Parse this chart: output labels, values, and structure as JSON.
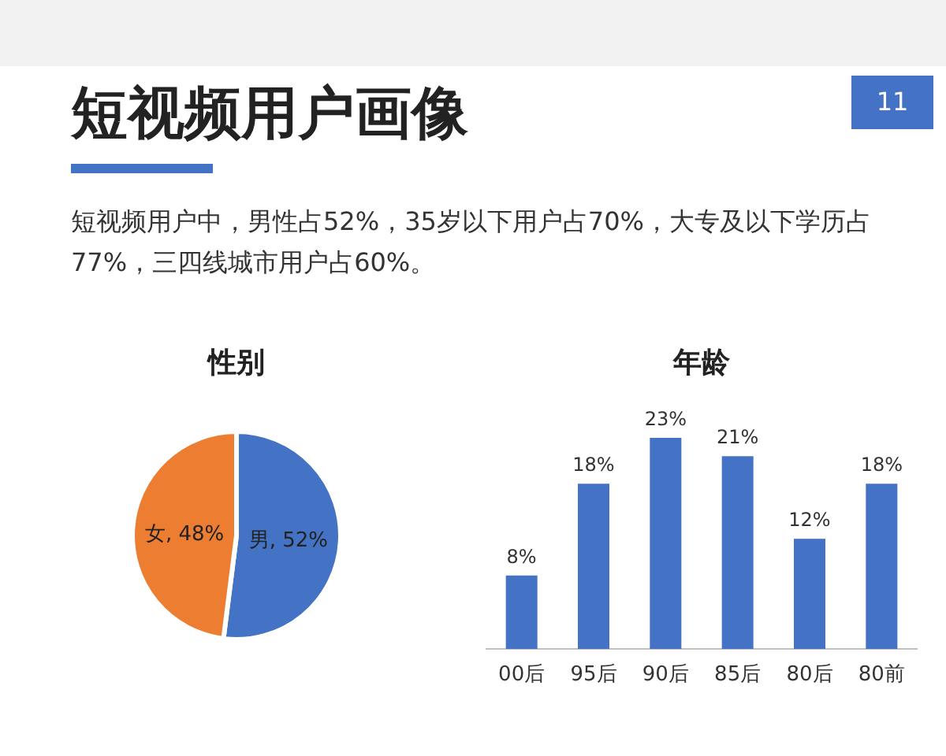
{
  "chart_data": [
    {
      "type": "other",
      "title": "短视频用户画像",
      "annotations": [
        "短视频用户中，男性占52%，35岁以下用户占70%，大专及以下学历占77%，三四线城市用户占60%。",
        "11"
      ]
    },
    {
      "type": "pie",
      "title": "性别",
      "categories": [
        "男",
        "女"
      ],
      "values": [
        52,
        48
      ],
      "colors": [
        "#4472c4",
        "#ed7d31"
      ],
      "value_labels": [
        "52%",
        "48%"
      ]
    },
    {
      "type": "bar",
      "title": "年龄",
      "categories": [
        "00后",
        "95后",
        "90后",
        "85后",
        "80后",
        "80前"
      ],
      "values": [
        8,
        18,
        23,
        21,
        12,
        18
      ],
      "color": "#4472c4",
      "value_labels": [
        "8%",
        "18%",
        "23%",
        "21%",
        "12%",
        "18%"
      ],
      "tick_labels": "x"
    }
  ]
}
